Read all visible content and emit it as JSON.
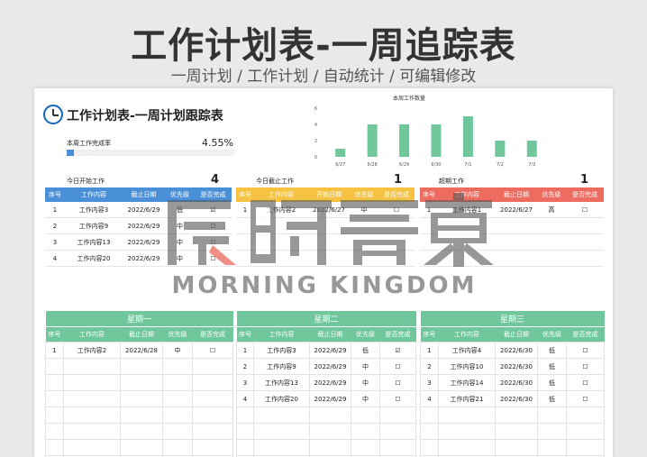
{
  "hero": {
    "title": "工作计划表-一周追踪表",
    "subtitle": "一周计划 / 工作计划 / 自动统计 / 可编辑修改"
  },
  "sheet": {
    "title": "工作计划表-一周计划跟踪表",
    "completion_label": "本周工作完成率",
    "completion_value": "4.55%",
    "completion_fraction": 0.0455
  },
  "chart_data": {
    "type": "bar",
    "title": "本周工作数量",
    "categories": [
      "6/27",
      "6/28",
      "6/29",
      "6/30",
      "7/1",
      "7/2",
      "7/3"
    ],
    "values": [
      1,
      4,
      4,
      4,
      5,
      2,
      2
    ],
    "ylim": [
      0,
      6
    ],
    "yticks": [
      "0",
      "2",
      "4",
      "6"
    ],
    "bar_color": "#6fc79b"
  },
  "headers": {
    "today_start": [
      "序号",
      "工作内容",
      "截止日期",
      "优先级",
      "是否完成"
    ],
    "today_due": [
      "序号",
      "工作内容",
      "开始日期",
      "优先级",
      "是否完成"
    ],
    "overdue": [
      "序号",
      "工作内容",
      "截止日期",
      "优先级",
      "是否完成"
    ],
    "day": [
      "序号",
      "工作内容",
      "截止日期",
      "优先级",
      "是否完成"
    ]
  },
  "today_start": {
    "label": "今日开始工作",
    "count": "4",
    "rows": [
      [
        "1",
        "工作内容3",
        "2022/6/29",
        "低",
        "☑"
      ],
      [
        "2",
        "工作内容9",
        "2022/6/29",
        "中",
        "☐"
      ],
      [
        "3",
        "工作内容13",
        "2022/6/29",
        "中",
        "☐"
      ],
      [
        "4",
        "工作内容20",
        "2022/6/29",
        "中",
        "☐"
      ]
    ]
  },
  "today_due": {
    "label": "今日截止工作",
    "count": "1",
    "rows": [
      [
        "1",
        "工作内容2",
        "2022/6/27",
        "中",
        "☐"
      ]
    ]
  },
  "overdue": {
    "label": "超期工作",
    "count": "1",
    "rows": [
      [
        "1",
        "工作内容1",
        "2022/6/27",
        "高",
        "☐"
      ]
    ]
  },
  "days": [
    {
      "title": "星期一",
      "rows": [
        [
          "1",
          "工作内容2",
          "2022/6/28",
          "中",
          "☐"
        ]
      ]
    },
    {
      "title": "星期二",
      "rows": [
        [
          "1",
          "工作内容3",
          "2022/6/29",
          "低",
          "☑"
        ],
        [
          "2",
          "工作内容9",
          "2022/6/29",
          "中",
          "☐"
        ],
        [
          "3",
          "工作内容13",
          "2022/6/29",
          "中",
          "☐"
        ],
        [
          "4",
          "工作内容20",
          "2022/6/29",
          "中",
          "☐"
        ]
      ]
    },
    {
      "title": "星期三",
      "rows": [
        [
          "1",
          "工作内容4",
          "2022/6/30",
          "低",
          "☐"
        ],
        [
          "2",
          "工作内容10",
          "2022/6/30",
          "低",
          "☐"
        ],
        [
          "3",
          "工作内容14",
          "2022/6/30",
          "低",
          "☐"
        ],
        [
          "4",
          "工作内容21",
          "2022/6/30",
          "低",
          "☐"
        ]
      ]
    }
  ],
  "watermark": {
    "cn": "辰时青東",
    "en": "MORNING KINGDOM"
  }
}
